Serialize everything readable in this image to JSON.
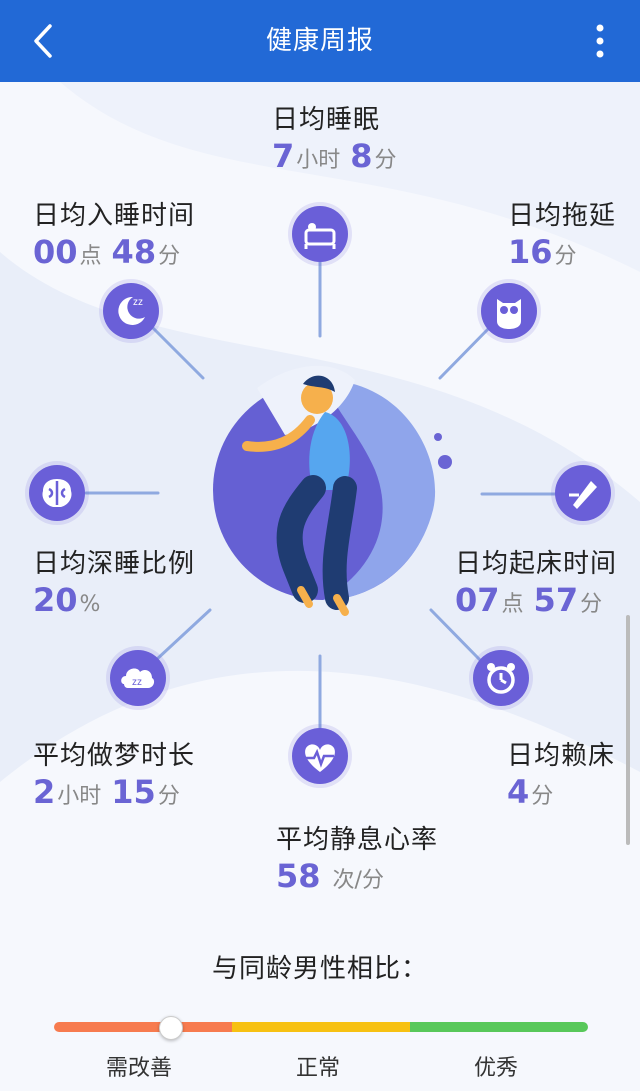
{
  "header": {
    "title": "健康周报"
  },
  "stats": {
    "sleep": {
      "label": "日均睡眠",
      "v1": "7",
      "u1": "小时",
      "v2": "8",
      "u2": "分"
    },
    "bedtime": {
      "label": "日均入睡时间",
      "v1": "00",
      "u1": "点",
      "v2": "48",
      "u2": "分"
    },
    "procrast": {
      "label": "日均拖延",
      "v1": "16",
      "u1": "分"
    },
    "deep": {
      "label": "日均深睡比例",
      "v1": "20",
      "u1": "%"
    },
    "wake": {
      "label": "日均起床时间",
      "v1": "07",
      "u1": "点",
      "v2": "57",
      "u2": "分"
    },
    "dream": {
      "label": "平均做梦时长",
      "v1": "2",
      "u1": "小时",
      "v2": "15",
      "u2": "分"
    },
    "lazy": {
      "label": "日均赖床",
      "v1": "4",
      "u1": "分"
    },
    "heart": {
      "label": "平均静息心率",
      "v1": "58",
      "u1": "次/分"
    }
  },
  "compare": {
    "title": "与同龄男性相比：",
    "scale": [
      "需改善",
      "正常",
      "优秀"
    ],
    "level_fraction": 0.22,
    "colors": {
      "improve": "#f77b4f",
      "normal": "#f7c112",
      "excellent": "#58c85a"
    }
  },
  "colors": {
    "header": "#2269d6",
    "accent": "#6a64d4"
  },
  "icons": [
    "bed-icon",
    "moon-icon",
    "owl-icon",
    "brain-icon",
    "pen-icon",
    "dream-icon",
    "alarm-clock-icon",
    "heartbeat-icon"
  ]
}
